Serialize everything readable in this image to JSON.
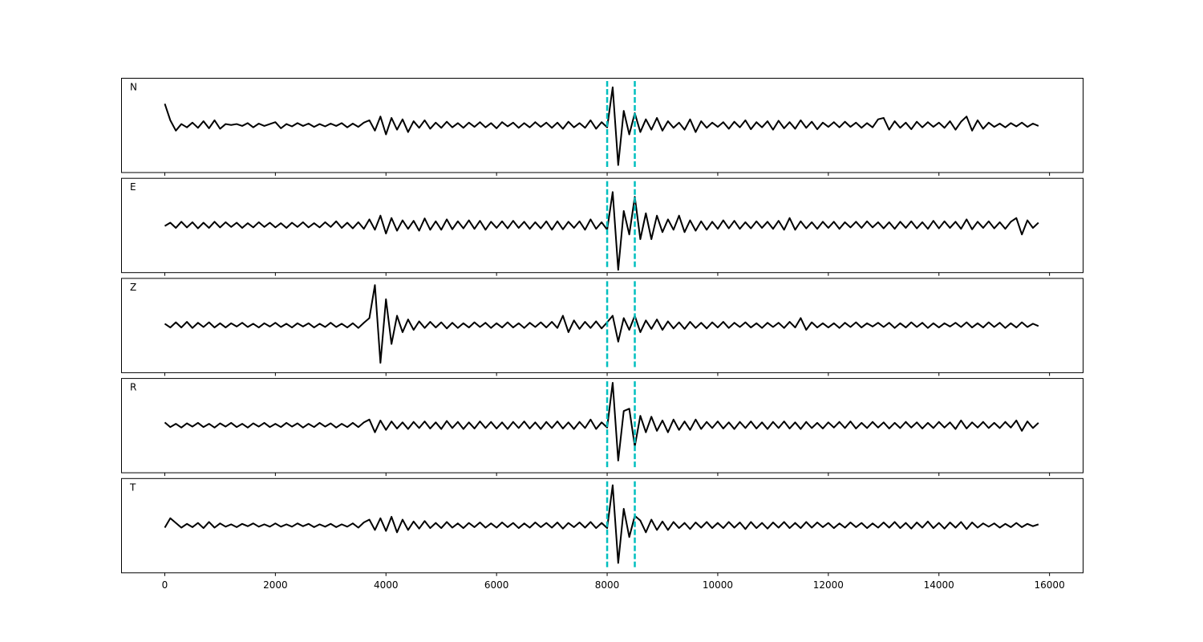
{
  "chart_data": {
    "type": "line",
    "layout": "stacked",
    "line_color": "#000000",
    "vline_color": "#00bfbf",
    "vline_style": "dashed",
    "vlines": [
      8000,
      8500
    ],
    "xlim": [
      -790,
      16600
    ],
    "ylim": [
      -1,
      1
    ],
    "xticks": [
      0,
      2000,
      4000,
      6000,
      8000,
      10000,
      12000,
      14000,
      16000
    ],
    "x": [
      0,
      100,
      200,
      300,
      400,
      500,
      600,
      700,
      800,
      900,
      1000,
      1100,
      1200,
      1300,
      1400,
      1500,
      1600,
      1700,
      1800,
      1900,
      2000,
      2100,
      2200,
      2300,
      2400,
      2500,
      2600,
      2700,
      2800,
      2900,
      3000,
      3100,
      3200,
      3300,
      3400,
      3500,
      3600,
      3700,
      3800,
      3900,
      4000,
      4100,
      4200,
      4300,
      4400,
      4500,
      4600,
      4700,
      4800,
      4900,
      5000,
      5100,
      5200,
      5300,
      5400,
      5500,
      5600,
      5700,
      5800,
      5900,
      6000,
      6100,
      6200,
      6300,
      6400,
      6500,
      6600,
      6700,
      6800,
      6900,
      7000,
      7100,
      7200,
      7300,
      7400,
      7500,
      7600,
      7700,
      7800,
      7900,
      8000,
      8100,
      8200,
      8300,
      8400,
      8500,
      8600,
      8700,
      8800,
      8900,
      9000,
      9100,
      9200,
      9300,
      9400,
      9500,
      9600,
      9700,
      9800,
      9900,
      10000,
      10100,
      10200,
      10300,
      10400,
      10500,
      10600,
      10700,
      10800,
      10900,
      11000,
      11100,
      11200,
      11300,
      11400,
      11500,
      11600,
      11700,
      11800,
      11900,
      12000,
      12100,
      12200,
      12300,
      12400,
      12500,
      12600,
      12700,
      12800,
      12900,
      13000,
      13100,
      13200,
      13300,
      13400,
      13500,
      13600,
      13700,
      13800,
      13900,
      14000,
      14100,
      14200,
      14300,
      14400,
      14500,
      14600,
      14700,
      14800,
      14900,
      15000,
      15100,
      15200,
      15300,
      15400,
      15500,
      15600,
      15700,
      15800
    ],
    "series": [
      {
        "name": "N",
        "values": [
          0.45,
          0.1,
          -0.12,
          0.02,
          -0.05,
          0.05,
          -0.06,
          0.08,
          -0.07,
          0.1,
          -0.08,
          0.02,
          0.0,
          0.02,
          -0.02,
          0.04,
          -0.05,
          0.03,
          -0.02,
          0.02,
          0.06,
          -0.07,
          0.02,
          -0.03,
          0.04,
          -0.02,
          0.03,
          -0.04,
          0.02,
          -0.03,
          0.03,
          -0.02,
          0.04,
          -0.05,
          0.03,
          -0.04,
          0.05,
          0.1,
          -0.12,
          0.18,
          -0.2,
          0.15,
          -0.1,
          0.12,
          -0.15,
          0.08,
          -0.06,
          0.1,
          -0.08,
          0.05,
          -0.06,
          0.07,
          -0.05,
          0.04,
          -0.06,
          0.05,
          -0.04,
          0.06,
          -0.05,
          0.04,
          -0.07,
          0.06,
          -0.03,
          0.05,
          -0.06,
          0.04,
          -0.05,
          0.06,
          -0.04,
          0.05,
          -0.06,
          0.05,
          -0.08,
          0.07,
          -0.05,
          0.04,
          -0.06,
          0.1,
          -0.08,
          0.06,
          -0.05,
          0.8,
          -0.85,
          0.3,
          -0.2,
          0.25,
          -0.15,
          0.12,
          -0.1,
          0.15,
          -0.12,
          0.08,
          -0.06,
          0.05,
          -0.1,
          0.12,
          -0.15,
          0.08,
          -0.06,
          0.05,
          -0.04,
          0.06,
          -0.08,
          0.07,
          -0.05,
          0.1,
          -0.09,
          0.06,
          -0.05,
          0.08,
          -0.1,
          0.09,
          -0.07,
          0.06,
          -0.08,
          0.1,
          -0.06,
          0.07,
          -0.09,
          0.05,
          -0.04,
          0.06,
          -0.05,
          0.07,
          -0.04,
          0.05,
          -0.06,
          0.04,
          -0.05,
          0.12,
          0.15,
          -0.1,
          0.08,
          -0.06,
          0.05,
          -0.09,
          0.07,
          -0.05,
          0.06,
          -0.04,
          0.05,
          -0.06,
          0.08,
          -0.1,
          0.07,
          0.18,
          -0.12,
          0.1,
          -0.08,
          0.05,
          -0.04,
          0.03,
          -0.05,
          0.04,
          -0.03,
          0.05,
          -0.04,
          0.03,
          -0.02
        ]
      },
      {
        "name": "E",
        "values": [
          -0.02,
          0.05,
          -0.06,
          0.07,
          -0.05,
          0.06,
          -0.07,
          0.05,
          -0.06,
          0.07,
          -0.05,
          0.06,
          -0.04,
          0.05,
          -0.06,
          0.04,
          -0.05,
          0.06,
          -0.04,
          0.05,
          -0.05,
          0.04,
          -0.06,
          0.05,
          -0.04,
          0.06,
          -0.05,
          0.04,
          -0.05,
          0.06,
          -0.04,
          0.08,
          -0.06,
          0.05,
          -0.07,
          0.06,
          -0.08,
          0.12,
          -0.1,
          0.2,
          -0.18,
          0.15,
          -0.12,
          0.1,
          -0.08,
          0.09,
          -0.12,
          0.14,
          -0.1,
          0.08,
          -0.1,
          0.12,
          -0.09,
          0.08,
          -0.07,
          0.1,
          -0.08,
          0.09,
          -0.1,
          0.07,
          -0.06,
          0.08,
          -0.07,
          0.09,
          -0.06,
          0.07,
          -0.08,
          0.06,
          -0.07,
          0.08,
          -0.1,
          0.08,
          -0.09,
          0.07,
          -0.06,
          0.08,
          -0.1,
          0.12,
          -0.08,
          0.06,
          -0.1,
          0.7,
          -0.95,
          0.3,
          -0.2,
          0.6,
          -0.3,
          0.25,
          -0.3,
          0.2,
          -0.15,
          0.12,
          -0.1,
          0.2,
          -0.15,
          0.1,
          -0.12,
          0.08,
          -0.1,
          0.07,
          -0.08,
          0.1,
          -0.07,
          0.09,
          -0.08,
          0.06,
          -0.07,
          0.08,
          -0.06,
          0.07,
          -0.08,
          0.09,
          -0.1,
          0.15,
          -0.1,
          0.08,
          -0.07,
          0.06,
          -0.08,
          0.07,
          -0.06,
          0.07,
          -0.08,
          0.06,
          -0.05,
          0.07,
          -0.06,
          0.08,
          -0.05,
          0.06,
          -0.07,
          0.06,
          -0.08,
          0.07,
          -0.06,
          0.08,
          -0.07,
          0.06,
          -0.08,
          0.09,
          -0.07,
          0.08,
          -0.06,
          0.07,
          -0.08,
          0.12,
          -0.09,
          0.07,
          -0.06,
          0.08,
          -0.07,
          0.06,
          -0.08,
          0.07,
          0.15,
          -0.2,
          0.1,
          -0.06,
          0.05
        ]
      },
      {
        "name": "Z",
        "values": [
          0.03,
          -0.05,
          0.06,
          -0.05,
          0.07,
          -0.06,
          0.05,
          -0.04,
          0.06,
          -0.05,
          0.04,
          -0.05,
          0.04,
          -0.03,
          0.05,
          -0.04,
          0.03,
          -0.05,
          0.04,
          -0.03,
          0.05,
          -0.04,
          0.03,
          -0.05,
          0.04,
          -0.03,
          0.04,
          -0.05,
          0.03,
          -0.04,
          0.05,
          -0.04,
          0.03,
          -0.05,
          0.04,
          -0.06,
          0.05,
          0.15,
          0.85,
          -0.8,
          0.55,
          -0.4,
          0.2,
          -0.15,
          0.12,
          -0.1,
          0.08,
          -0.06,
          0.07,
          -0.05,
          0.06,
          -0.07,
          0.05,
          -0.06,
          0.04,
          -0.05,
          0.06,
          -0.04,
          0.05,
          -0.06,
          0.04,
          -0.05,
          0.06,
          -0.05,
          0.04,
          -0.06,
          0.05,
          -0.04,
          0.06,
          -0.05,
          0.07,
          -0.06,
          0.2,
          -0.15,
          0.1,
          -0.08,
          0.07,
          -0.06,
          0.08,
          -0.07,
          0.06,
          0.2,
          -0.35,
          0.15,
          -0.1,
          0.2,
          -0.15,
          0.1,
          -0.08,
          0.12,
          -0.1,
          0.08,
          -0.07,
          0.06,
          -0.08,
          0.07,
          -0.06,
          0.05,
          -0.07,
          0.06,
          -0.05,
          0.07,
          -0.06,
          0.05,
          -0.04,
          0.06,
          -0.05,
          0.04,
          -0.06,
          0.05,
          -0.04,
          0.05,
          -0.06,
          0.07,
          -0.05,
          0.15,
          -0.1,
          0.06,
          -0.05,
          0.04,
          -0.05,
          0.04,
          -0.06,
          0.05,
          -0.04,
          0.06,
          -0.05,
          0.04,
          -0.03,
          0.05,
          -0.04,
          0.05,
          -0.06,
          0.04,
          -0.05,
          0.06,
          -0.04,
          0.05,
          -0.06,
          0.04,
          -0.05,
          0.04,
          -0.03,
          0.05,
          -0.04,
          0.06,
          -0.05,
          0.04,
          -0.05,
          0.06,
          -0.04,
          0.05,
          -0.06,
          0.04,
          -0.05,
          0.06,
          -0.04,
          0.03,
          -0.02
        ]
      },
      {
        "name": "R",
        "values": [
          0.06,
          -0.04,
          0.03,
          -0.05,
          0.04,
          -0.03,
          0.05,
          -0.04,
          0.03,
          -0.05,
          0.04,
          -0.03,
          0.05,
          -0.04,
          0.03,
          -0.05,
          0.04,
          -0.03,
          0.05,
          -0.04,
          0.03,
          -0.04,
          0.05,
          -0.03,
          0.04,
          -0.05,
          0.03,
          -0.04,
          0.05,
          -0.03,
          0.04,
          -0.05,
          0.03,
          -0.04,
          0.05,
          -0.04,
          0.06,
          0.12,
          -0.15,
          0.1,
          -0.1,
          0.08,
          -0.07,
          0.06,
          -0.08,
          0.07,
          -0.06,
          0.08,
          -0.07,
          0.06,
          -0.08,
          0.09,
          -0.06,
          0.07,
          -0.08,
          0.06,
          -0.07,
          0.08,
          -0.06,
          0.07,
          -0.07,
          0.06,
          -0.08,
          0.07,
          -0.06,
          0.08,
          -0.07,
          0.06,
          -0.08,
          0.07,
          -0.06,
          0.08,
          -0.07,
          0.06,
          -0.08,
          0.07,
          -0.06,
          0.12,
          -0.08,
          0.06,
          -0.05,
          0.9,
          -0.75,
          0.3,
          0.35,
          -0.45,
          0.2,
          -0.15,
          0.18,
          -0.12,
          0.1,
          -0.15,
          0.12,
          -0.1,
          0.08,
          -0.1,
          0.12,
          -0.08,
          0.07,
          -0.06,
          0.08,
          -0.07,
          0.06,
          -0.08,
          0.07,
          -0.06,
          0.08,
          -0.07,
          0.06,
          -0.08,
          0.07,
          -0.06,
          0.08,
          -0.07,
          0.06,
          -0.08,
          0.07,
          -0.06,
          0.05,
          -0.07,
          0.06,
          -0.05,
          0.07,
          -0.06,
          0.08,
          -0.07,
          0.05,
          -0.06,
          0.07,
          -0.05,
          0.06,
          -0.07,
          0.05,
          -0.06,
          0.07,
          -0.05,
          0.06,
          -0.07,
          0.05,
          -0.06,
          0.07,
          -0.05,
          0.06,
          -0.08,
          0.1,
          -0.07,
          0.06,
          -0.05,
          0.07,
          -0.06,
          0.05,
          -0.06,
          0.07,
          -0.05,
          0.1,
          -0.12,
          0.08,
          -0.06,
          0.05
        ]
      },
      {
        "name": "T",
        "values": [
          -0.05,
          0.15,
          0.05,
          -0.05,
          0.03,
          -0.04,
          0.05,
          -0.06,
          0.07,
          -0.05,
          0.04,
          -0.03,
          0.02,
          -0.04,
          0.03,
          -0.02,
          0.04,
          -0.03,
          0.02,
          -0.03,
          0.04,
          -0.03,
          0.02,
          -0.03,
          0.04,
          -0.02,
          0.03,
          -0.04,
          0.02,
          -0.03,
          0.03,
          -0.04,
          0.02,
          -0.03,
          0.04,
          -0.05,
          0.06,
          0.12,
          -0.1,
          0.15,
          -0.12,
          0.18,
          -0.15,
          0.12,
          -0.1,
          0.08,
          -0.07,
          0.09,
          -0.06,
          0.05,
          -0.06,
          0.07,
          -0.05,
          0.04,
          -0.06,
          0.05,
          -0.04,
          0.06,
          -0.05,
          0.04,
          -0.05,
          0.06,
          -0.04,
          0.05,
          -0.06,
          0.04,
          -0.05,
          0.06,
          -0.04,
          0.05,
          -0.05,
          0.06,
          -0.07,
          0.05,
          -0.04,
          0.06,
          -0.05,
          0.07,
          -0.06,
          0.05,
          -0.06,
          0.85,
          -0.8,
          0.35,
          -0.25,
          0.2,
          0.1,
          -0.15,
          0.12,
          -0.1,
          0.08,
          -0.1,
          0.07,
          -0.06,
          0.05,
          -0.08,
          0.06,
          -0.05,
          0.07,
          -0.06,
          0.05,
          -0.06,
          0.07,
          -0.05,
          0.06,
          -0.08,
          0.07,
          -0.06,
          0.05,
          -0.07,
          0.06,
          -0.05,
          0.07,
          -0.06,
          0.05,
          -0.06,
          0.07,
          -0.05,
          0.06,
          -0.04,
          0.05,
          -0.06,
          0.04,
          -0.05,
          0.06,
          -0.04,
          0.05,
          -0.06,
          0.04,
          -0.05,
          0.06,
          -0.05,
          0.07,
          -0.06,
          0.05,
          -0.07,
          0.06,
          -0.05,
          0.08,
          -0.06,
          0.05,
          -0.07,
          0.06,
          -0.05,
          0.07,
          -0.08,
          0.06,
          -0.05,
          0.04,
          -0.03,
          0.04,
          -0.05,
          0.03,
          -0.04,
          0.05,
          -0.04,
          0.03,
          -0.02,
          0.02
        ]
      }
    ]
  }
}
